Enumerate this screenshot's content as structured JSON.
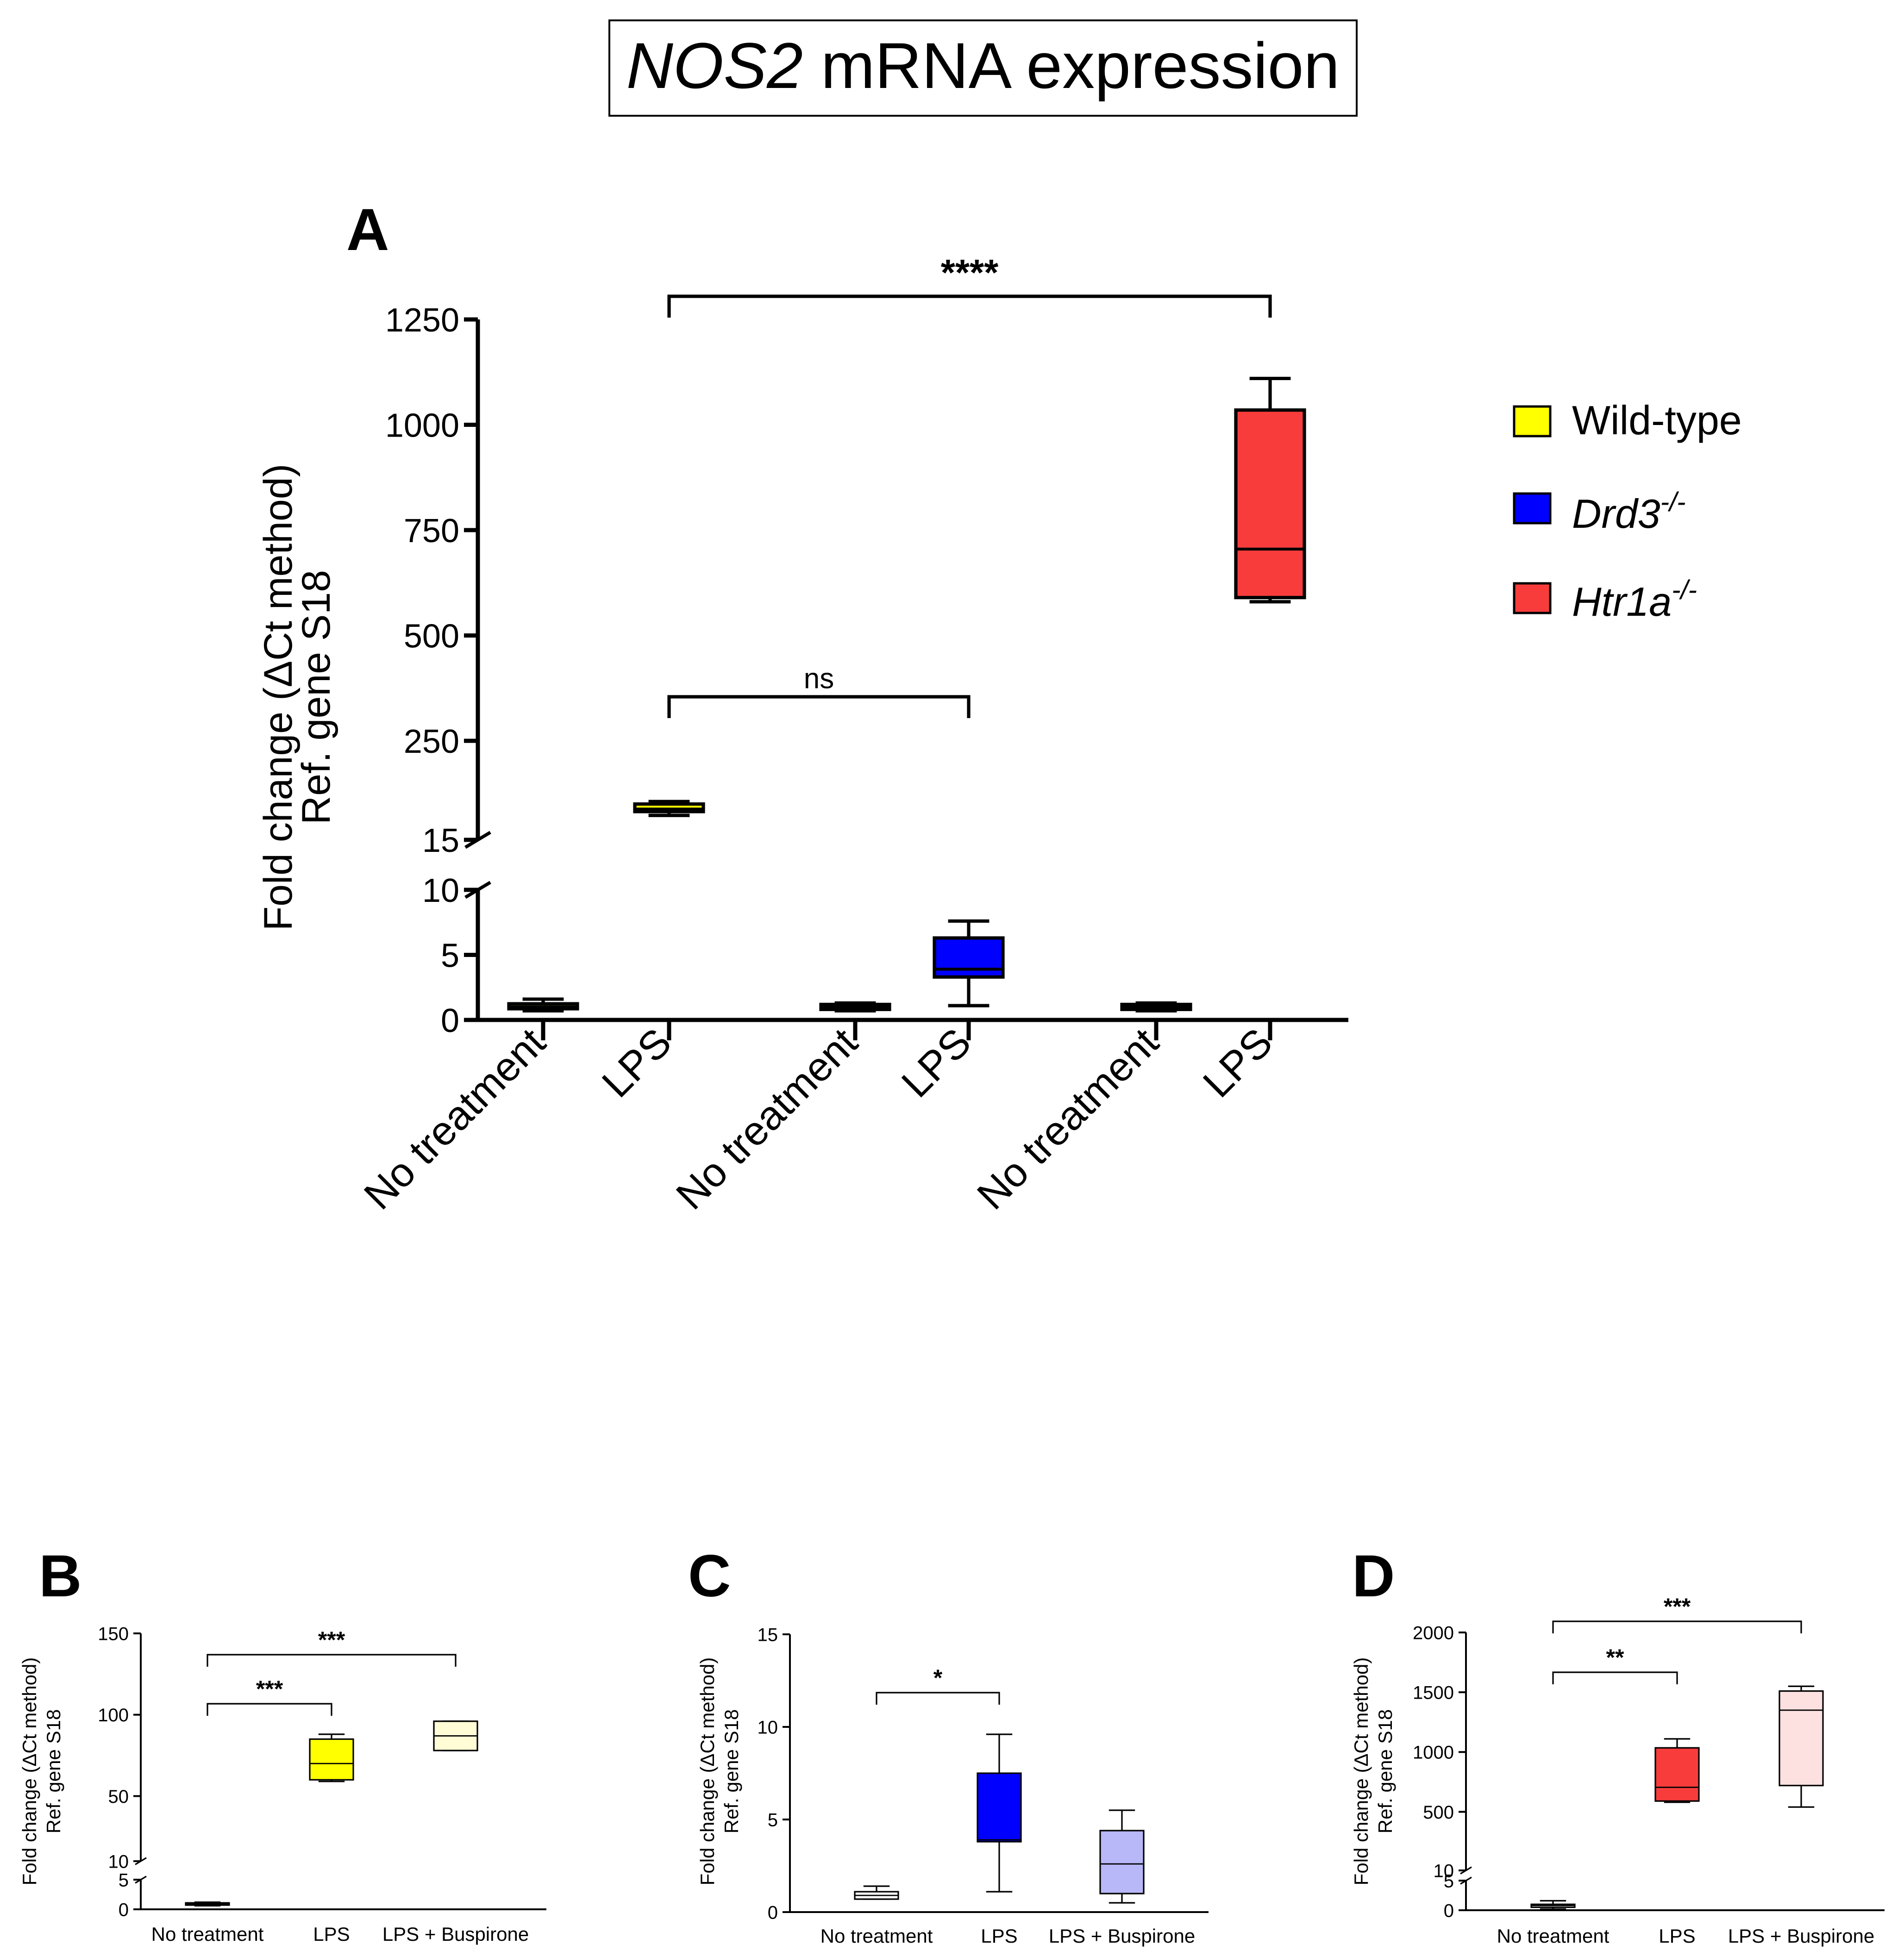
{
  "figure": {
    "title_italic": "NOS2",
    "title_rest": " mRNA expression"
  },
  "colors": {
    "wild_type": "#ffff00",
    "drd3": "#0000ff",
    "htr1a": "#f83c3c",
    "wild_type_buspirone": "#fffcd6",
    "drd3_buspirone": "#b8b8f8",
    "htr1a_buspirone": "#fde1e1",
    "control": "#ffffff"
  },
  "legend": [
    {
      "label": "Wild-type",
      "gene": "",
      "superscript": "",
      "color_key": "wild_type"
    },
    {
      "label": "",
      "gene": "Drd3",
      "superscript": "-/-",
      "color_key": "drd3"
    },
    {
      "label": "",
      "gene": "Htr1a",
      "superscript": "-/-",
      "color_key": "htr1a"
    }
  ],
  "chart_data": [
    {
      "panel": "A",
      "type": "box",
      "ylabel_line1": "Fold change (ΔCt method)",
      "ylabel_line2": "Ref. gene S18",
      "broken_axis": true,
      "lower_segment": {
        "ylim": [
          0,
          10
        ],
        "ticks": [
          0,
          5,
          10
        ]
      },
      "upper_segment": {
        "ylim": [
          15,
          1250
        ],
        "ticks": [
          15,
          250,
          500,
          750,
          1000,
          1250
        ]
      },
      "categories": [
        "No treatment",
        "LPS",
        "No treatment",
        "LPS",
        "No treatment",
        "LPS"
      ],
      "boxes": [
        {
          "group": "Wild-type",
          "category": "No treatment",
          "min": 0.7,
          "q1": 0.9,
          "median": 1.0,
          "q3": 1.2,
          "max": 1.6,
          "color_key": "wild_type"
        },
        {
          "group": "Wild-type",
          "category": "LPS",
          "min": 73,
          "q1": 82,
          "median": 88,
          "q3": 100,
          "max": 106,
          "color_key": "wild_type"
        },
        {
          "group": "Drd3-/-",
          "category": "No treatment",
          "min": 0.7,
          "q1": 0.9,
          "median": 1.0,
          "q3": 1.1,
          "max": 1.3,
          "color_key": "drd3"
        },
        {
          "group": "Drd3-/-",
          "category": "LPS",
          "min": 1.1,
          "q1": 3.3,
          "median": 3.9,
          "q3": 6.3,
          "max": 7.6,
          "color_key": "drd3"
        },
        {
          "group": "Htr1a-/-",
          "category": "No treatment",
          "min": 0.7,
          "q1": 0.9,
          "median": 1.0,
          "q3": 1.1,
          "max": 1.3,
          "color_key": "htr1a"
        },
        {
          "group": "Htr1a-/-",
          "category": "LPS",
          "min": 580,
          "q1": 590,
          "median": 705,
          "q3": 1035,
          "max": 1110,
          "color_key": "htr1a"
        }
      ],
      "comparisons": [
        {
          "from": 1,
          "to": 5,
          "label": "****"
        },
        {
          "from": 1,
          "to": 3,
          "label": "ns"
        }
      ]
    },
    {
      "panel": "B",
      "type": "box",
      "ylabel_line1": "Fold change (ΔCt method)",
      "ylabel_line2": "Ref. gene S18",
      "broken_axis": true,
      "lower_segment": {
        "ylim": [
          0,
          5
        ],
        "ticks": [
          0,
          5
        ]
      },
      "upper_segment": {
        "ylim": [
          10,
          150
        ],
        "ticks": [
          10,
          50,
          100,
          150
        ]
      },
      "categories": [
        "No treatment",
        "LPS",
        "LPS + Buspirone"
      ],
      "boxes": [
        {
          "category": "No treatment",
          "min": 0.6,
          "q1": 0.8,
          "median": 0.9,
          "q3": 1.0,
          "max": 1.2,
          "color_key": "control"
        },
        {
          "category": "LPS",
          "min": 59,
          "q1": 60,
          "median": 70,
          "q3": 85,
          "max": 88,
          "color_key": "wild_type"
        },
        {
          "category": "LPS + Buspirone",
          "min": 78,
          "q1": 78,
          "median": 87,
          "q3": 96,
          "max": 96,
          "color_key": "wild_type_buspirone"
        }
      ],
      "comparisons": [
        {
          "from": 0,
          "to": 2,
          "label": "***"
        },
        {
          "from": 0,
          "to": 1,
          "label": "***"
        }
      ]
    },
    {
      "panel": "C",
      "type": "box",
      "ylabel_line1": "Fold change (ΔCt method)",
      "ylabel_line2": "Ref. gene S18",
      "broken_axis": false,
      "ylim": [
        0,
        15
      ],
      "ticks": [
        0,
        5,
        10,
        15
      ],
      "categories": [
        "No treatment",
        "LPS",
        "LPS + Buspirone"
      ],
      "boxes": [
        {
          "category": "No treatment",
          "min": 0.7,
          "q1": 0.7,
          "median": 0.9,
          "q3": 1.1,
          "max": 1.4,
          "color_key": "control"
        },
        {
          "category": "LPS",
          "min": 1.1,
          "q1": 3.8,
          "median": 3.9,
          "q3": 7.5,
          "max": 9.6,
          "color_key": "drd3"
        },
        {
          "category": "LPS + Buspirone",
          "min": 0.5,
          "q1": 1.0,
          "median": 2.6,
          "q3": 4.4,
          "max": 5.5,
          "color_key": "drd3_buspirone"
        }
      ],
      "comparisons": [
        {
          "from": 0,
          "to": 1,
          "label": "*"
        }
      ]
    },
    {
      "panel": "D",
      "type": "box",
      "ylabel_line1": "Fold change (ΔCt method)",
      "ylabel_line2": "Ref. gene S18",
      "broken_axis": true,
      "lower_segment": {
        "ylim": [
          0,
          5
        ],
        "ticks": [
          0,
          5
        ]
      },
      "upper_segment": {
        "ylim": [
          10,
          2000
        ],
        "ticks": [
          10,
          500,
          1000,
          1500,
          2000
        ]
      },
      "categories": [
        "No treatment",
        "LPS",
        "LPS + Buspirone"
      ],
      "boxes": [
        {
          "category": "No treatment",
          "min": 0.2,
          "q1": 0.5,
          "median": 0.8,
          "q3": 1.0,
          "max": 1.6,
          "color_key": "control"
        },
        {
          "category": "LPS",
          "min": 580,
          "q1": 590,
          "median": 705,
          "q3": 1035,
          "max": 1110,
          "color_key": "htr1a"
        },
        {
          "category": "LPS + Buspirone",
          "min": 540,
          "q1": 720,
          "median": 1350,
          "q3": 1510,
          "max": 1550,
          "color_key": "htr1a_buspirone"
        }
      ],
      "comparisons": [
        {
          "from": 0,
          "to": 2,
          "label": "***"
        },
        {
          "from": 0,
          "to": 1,
          "label": "**"
        }
      ]
    }
  ]
}
